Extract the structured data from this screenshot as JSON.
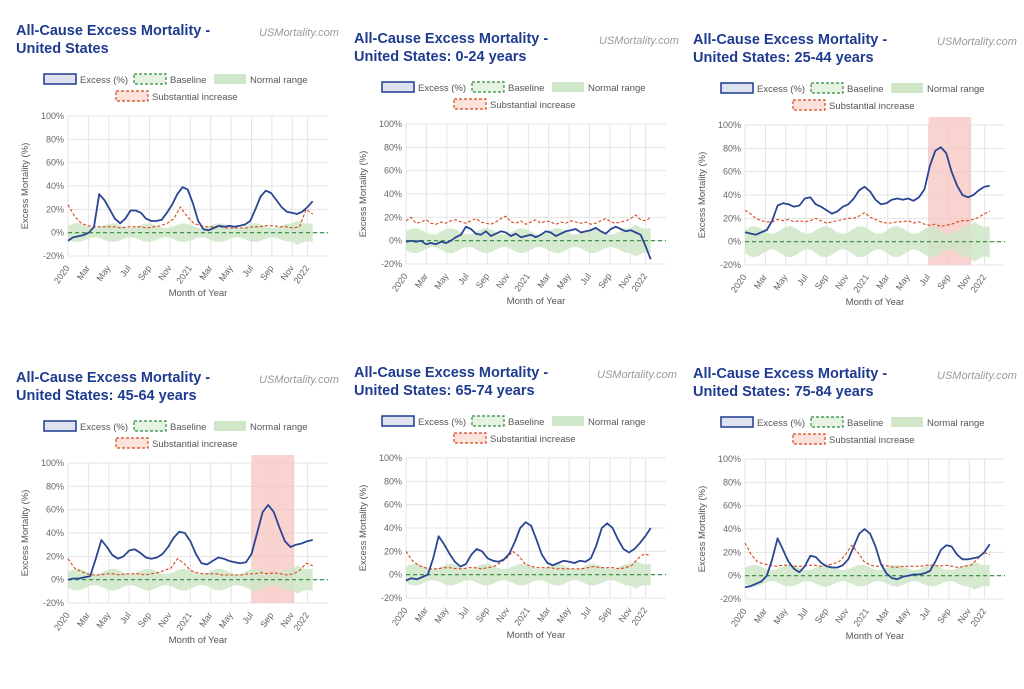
{
  "site": "USMortality.com",
  "colors": {
    "excess": "#2a4594",
    "baseline": "#2e8b3e",
    "normal": "#cfe6c8",
    "substantial": "#d9461e",
    "highlight": "#f7c4c0",
    "title": "#1f3b8f"
  },
  "legend": {
    "excess": "Excess (%)",
    "baseline": "Baseline",
    "normal": "Normal range",
    "substantial": "Substantial increase"
  },
  "chart_data": [
    {
      "type": "line",
      "title": "All-Cause Excess Mortality - United States",
      "xlabel": "Month of Year",
      "ylabel": "Excess Mortality (%)",
      "ylim": [
        -20,
        100
      ],
      "yticks": [
        "100%",
        "80%",
        "60%",
        "40%",
        "20%",
        "0%",
        "-20%"
      ],
      "xticks": [
        "2020",
        "Mar",
        "May",
        "Jul",
        "Sep",
        "Nov",
        "2021",
        "Mar",
        "May",
        "Jul",
        "Sep",
        "Nov",
        "2022"
      ],
      "grid": true,
      "legend_position": "top",
      "highlight": null,
      "series": [
        {
          "name": "Excess (%)",
          "x": [
            0,
            0.5,
            1,
            1.5,
            2,
            2.5,
            3,
            3.5,
            4,
            4.5,
            5,
            5.5,
            6,
            6.5,
            7,
            7.5,
            8,
            8.5,
            9,
            9.5,
            10,
            10.5,
            11,
            11.5,
            12,
            12.5,
            13,
            13.5,
            14,
            14.5,
            15,
            15.5,
            16,
            16.5,
            17,
            17.5,
            18,
            18.5,
            19,
            19.5,
            20,
            20.5,
            21,
            21.5,
            22,
            22.5,
            23,
            23.5,
            24,
            24.5,
            25,
            25.5
          ],
          "values": [
            -7,
            -4,
            -3,
            -2,
            0,
            5,
            33,
            28,
            20,
            12,
            8,
            12,
            19,
            19,
            17,
            12,
            10,
            10,
            11,
            17,
            24,
            33,
            39,
            37,
            25,
            10,
            3,
            2,
            4,
            6,
            5,
            6,
            5,
            6,
            7,
            10,
            20,
            31,
            36,
            34,
            28,
            22,
            18,
            17,
            16,
            18,
            22,
            27,
            null,
            null,
            null,
            null
          ]
        },
        {
          "name": "Substantial increase",
          "values": [
            24,
            14,
            8,
            6,
            5,
            5,
            5,
            5,
            4,
            5,
            5,
            5,
            4,
            5,
            6,
            8,
            12,
            22,
            14,
            8,
            6,
            5,
            5,
            5,
            4,
            4,
            4,
            4,
            5,
            5,
            6,
            6,
            5,
            5,
            4,
            5,
            20,
            16
          ]
        },
        {
          "name": "Baseline",
          "values": [
            0
          ]
        },
        {
          "name": "Normal range",
          "values": [
            -6,
            6
          ]
        }
      ]
    },
    {
      "type": "line",
      "title": "All-Cause Excess Mortality - United States: 0-24 years",
      "xlabel": "Month of Year",
      "ylabel": "Excess Mortality (%)",
      "ylim": [
        -20,
        100
      ],
      "yticks": [
        "100%",
        "80%",
        "60%",
        "40%",
        "20%",
        "0%",
        "-20%"
      ],
      "xticks": [
        "2020",
        "Mar",
        "May",
        "Jul",
        "Sep",
        "Nov",
        "2021",
        "Mar",
        "May",
        "Jul",
        "Sep",
        "Nov",
        "2022"
      ],
      "grid": true,
      "legend_position": "top",
      "highlight": null,
      "series": [
        {
          "name": "Excess (%)",
          "values": [
            -1,
            0,
            -1,
            0,
            -3,
            -2,
            -3,
            -1,
            -2,
            0,
            3,
            5,
            12,
            10,
            6,
            5,
            8,
            4,
            6,
            8,
            7,
            4,
            6,
            3,
            4,
            5,
            3,
            5,
            8,
            7,
            4,
            6,
            8,
            9,
            10,
            7,
            8,
            9,
            11,
            8,
            6,
            10,
            12,
            10,
            8,
            9,
            7,
            5,
            -5,
            -16
          ]
        },
        {
          "name": "Substantial increase",
          "values": [
            17,
            20,
            15,
            16,
            18,
            15,
            14,
            16,
            15,
            17,
            18,
            16,
            15,
            17,
            19,
            16,
            15,
            14,
            16,
            19,
            21,
            16,
            15,
            17,
            14,
            16,
            18,
            15,
            17,
            16,
            14,
            16,
            15,
            17,
            16,
            15,
            16,
            14,
            15,
            17,
            19,
            16,
            15,
            16,
            17,
            19,
            22,
            18,
            17,
            20
          ]
        },
        {
          "name": "Baseline",
          "values": [
            0
          ]
        },
        {
          "name": "Normal range",
          "values": [
            -8,
            8
          ]
        }
      ]
    },
    {
      "type": "line",
      "title": "All-Cause Excess Mortality - United States: 25-44 years",
      "xlabel": "Month of Year",
      "ylabel": "Excess Mortality (%)",
      "ylim": [
        -20,
        100
      ],
      "yticks": [
        "100%",
        "80%",
        "60%",
        "40%",
        "20%",
        "0%",
        "-20%"
      ],
      "xticks": [
        "2020",
        "Mar",
        "May",
        "Jul",
        "Sep",
        "Nov",
        "2021",
        "Mar",
        "May",
        "Jul",
        "Sep",
        "Nov",
        "2022"
      ],
      "grid": true,
      "legend_position": "top",
      "highlight": {
        "from": "Jul 2021",
        "to": "Nov 2021"
      },
      "series": [
        {
          "name": "Excess (%)",
          "values": [
            8,
            7,
            6,
            8,
            10,
            18,
            31,
            33,
            32,
            30,
            31,
            37,
            38,
            32,
            30,
            27,
            24,
            26,
            30,
            32,
            37,
            44,
            47,
            43,
            36,
            32,
            33,
            36,
            37,
            36,
            37,
            35,
            38,
            45,
            65,
            78,
            81,
            76,
            60,
            48,
            40,
            38,
            40,
            44,
            47,
            48
          ]
        },
        {
          "name": "Substantial increase",
          "values": [
            27,
            24,
            20,
            18,
            17,
            17,
            19,
            18,
            19,
            17,
            18,
            17,
            18,
            20,
            18,
            16,
            17,
            18,
            19,
            20,
            20,
            22,
            25,
            21,
            19,
            17,
            16,
            16,
            17,
            17,
            18,
            16,
            17,
            15,
            14,
            15,
            13,
            14,
            15,
            17,
            18,
            18,
            19,
            21,
            24,
            26
          ]
        },
        {
          "name": "Baseline",
          "values": [
            0
          ]
        },
        {
          "name": "Normal range",
          "values": [
            -10,
            10
          ]
        }
      ]
    },
    {
      "type": "line",
      "title": "All-Cause Excess Mortality - United States: 45-64 years",
      "xlabel": "Month of Year",
      "ylabel": "Excess Mortality (%)",
      "ylim": [
        -20,
        100
      ],
      "yticks": [
        "100%",
        "80%",
        "60%",
        "40%",
        "20%",
        "0%",
        "-20%"
      ],
      "xticks": [
        "2020",
        "Mar",
        "May",
        "Jul",
        "Sep",
        "Nov",
        "2021",
        "Mar",
        "May",
        "Jul",
        "Sep",
        "Nov",
        "2022"
      ],
      "grid": true,
      "legend_position": "top",
      "highlight": {
        "from": "Jul 2021",
        "to": "Nov 2021"
      },
      "series": [
        {
          "name": "Excess (%)",
          "values": [
            0,
            1,
            1,
            2,
            3,
            18,
            34,
            28,
            21,
            18,
            20,
            25,
            26,
            23,
            19,
            18,
            19,
            22,
            28,
            36,
            41,
            40,
            33,
            22,
            14,
            13,
            16,
            19,
            18,
            16,
            15,
            14,
            15,
            22,
            40,
            58,
            64,
            58,
            45,
            33,
            28,
            30,
            31,
            33,
            34
          ]
        },
        {
          "name": "Substantial increase",
          "values": [
            18,
            10,
            7,
            5,
            4,
            4,
            5,
            5,
            4,
            5,
            5,
            5,
            4,
            5,
            6,
            8,
            10,
            18,
            14,
            8,
            6,
            5,
            5,
            5,
            4,
            4,
            4,
            4,
            5,
            5,
            6,
            5,
            6,
            5,
            4,
            5,
            8,
            14,
            12
          ]
        },
        {
          "name": "Baseline",
          "values": [
            0
          ]
        },
        {
          "name": "Normal range",
          "values": [
            -7,
            7
          ]
        }
      ]
    },
    {
      "type": "line",
      "title": "All-Cause Excess Mortality - United States: 65-74 years",
      "xlabel": "Month of Year",
      "ylabel": "Excess Mortality (%)",
      "ylim": [
        -20,
        100
      ],
      "yticks": [
        "100%",
        "80%",
        "60%",
        "40%",
        "20%",
        "0%",
        "-20%"
      ],
      "xticks": [
        "2020",
        "Mar",
        "May",
        "Jul",
        "Sep",
        "Nov",
        "2021",
        "Mar",
        "May",
        "Jul",
        "Sep",
        "Nov",
        "2022"
      ],
      "grid": true,
      "legend_position": "top",
      "highlight": null,
      "series": [
        {
          "name": "Excess (%)",
          "values": [
            -5,
            -3,
            -4,
            -2,
            0,
            14,
            33,
            26,
            18,
            11,
            7,
            9,
            17,
            22,
            20,
            14,
            12,
            11,
            13,
            18,
            28,
            40,
            45,
            42,
            30,
            17,
            10,
            8,
            10,
            12,
            11,
            10,
            12,
            11,
            14,
            25,
            40,
            44,
            40,
            30,
            22,
            19,
            22,
            27,
            33,
            40
          ]
        },
        {
          "name": "Substantial increase",
          "values": [
            20,
            12,
            8,
            6,
            5,
            5,
            6,
            6,
            5,
            5,
            6,
            6,
            5,
            6,
            7,
            10,
            14,
            20,
            16,
            9,
            7,
            6,
            6,
            6,
            5,
            5,
            5,
            5,
            5,
            6,
            7,
            6,
            6,
            6,
            5,
            6,
            8,
            14,
            18,
            16
          ]
        },
        {
          "name": "Baseline",
          "values": [
            0
          ]
        },
        {
          "name": "Normal range",
          "values": [
            -7,
            7
          ]
        }
      ]
    },
    {
      "type": "line",
      "title": "All-Cause Excess Mortality - United States: 75-84 years",
      "xlabel": "Month of Year",
      "ylabel": "Excess Mortality (%)",
      "ylim": [
        -20,
        100
      ],
      "yticks": [
        "100%",
        "80%",
        "60%",
        "40%",
        "20%",
        "0%",
        "-20%"
      ],
      "xticks": [
        "2020",
        "Mar",
        "May",
        "Jul",
        "Sep",
        "Nov",
        "2021",
        "Mar",
        "May",
        "Jul",
        "Sep",
        "Nov",
        "2022"
      ],
      "grid": true,
      "legend_position": "top",
      "highlight": null,
      "series": [
        {
          "name": "Excess (%)",
          "values": [
            -10,
            -9,
            -7,
            -5,
            0,
            14,
            32,
            22,
            12,
            6,
            3,
            8,
            17,
            16,
            11,
            8,
            7,
            7,
            9,
            14,
            25,
            36,
            40,
            36,
            25,
            10,
            2,
            -2,
            -3,
            -1,
            0,
            1,
            1,
            2,
            4,
            12,
            22,
            26,
            25,
            18,
            14,
            14,
            15,
            16,
            20,
            27
          ]
        },
        {
          "name": "Substantial increase",
          "values": [
            28,
            18,
            12,
            10,
            9,
            8,
            9,
            9,
            8,
            8,
            9,
            9,
            8,
            9,
            10,
            12,
            18,
            26,
            20,
            12,
            9,
            8,
            9,
            8,
            7,
            8,
            8,
            8,
            8,
            9,
            9,
            8,
            9,
            8,
            7,
            8,
            9,
            14,
            20,
            18
          ]
        },
        {
          "name": "Baseline",
          "values": [
            0
          ]
        },
        {
          "name": "Normal range",
          "values": [
            -7,
            7
          ]
        }
      ]
    }
  ]
}
